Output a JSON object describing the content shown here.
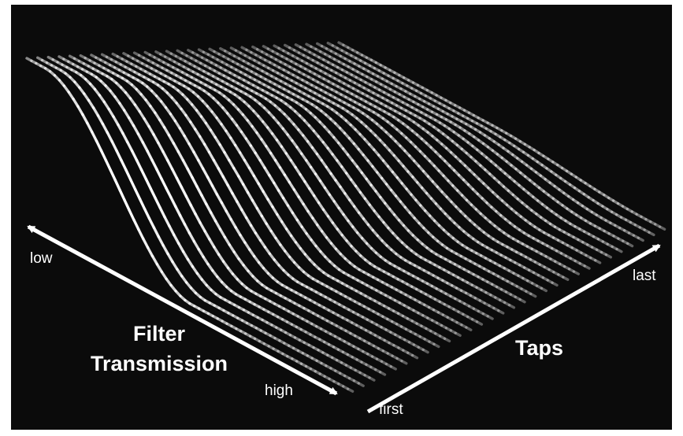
{
  "axes": {
    "transmission": {
      "title_line1": "Filter",
      "title_line2": "Transmission",
      "start_label": "low",
      "end_label": "high"
    },
    "taps": {
      "title": "Taps",
      "start_label": "first",
      "end_label": "last"
    }
  },
  "colors": {
    "background": "#0b0b0b",
    "line": "#ffffff",
    "text": "#ffffff"
  },
  "surface": {
    "line_count": 30
  }
}
